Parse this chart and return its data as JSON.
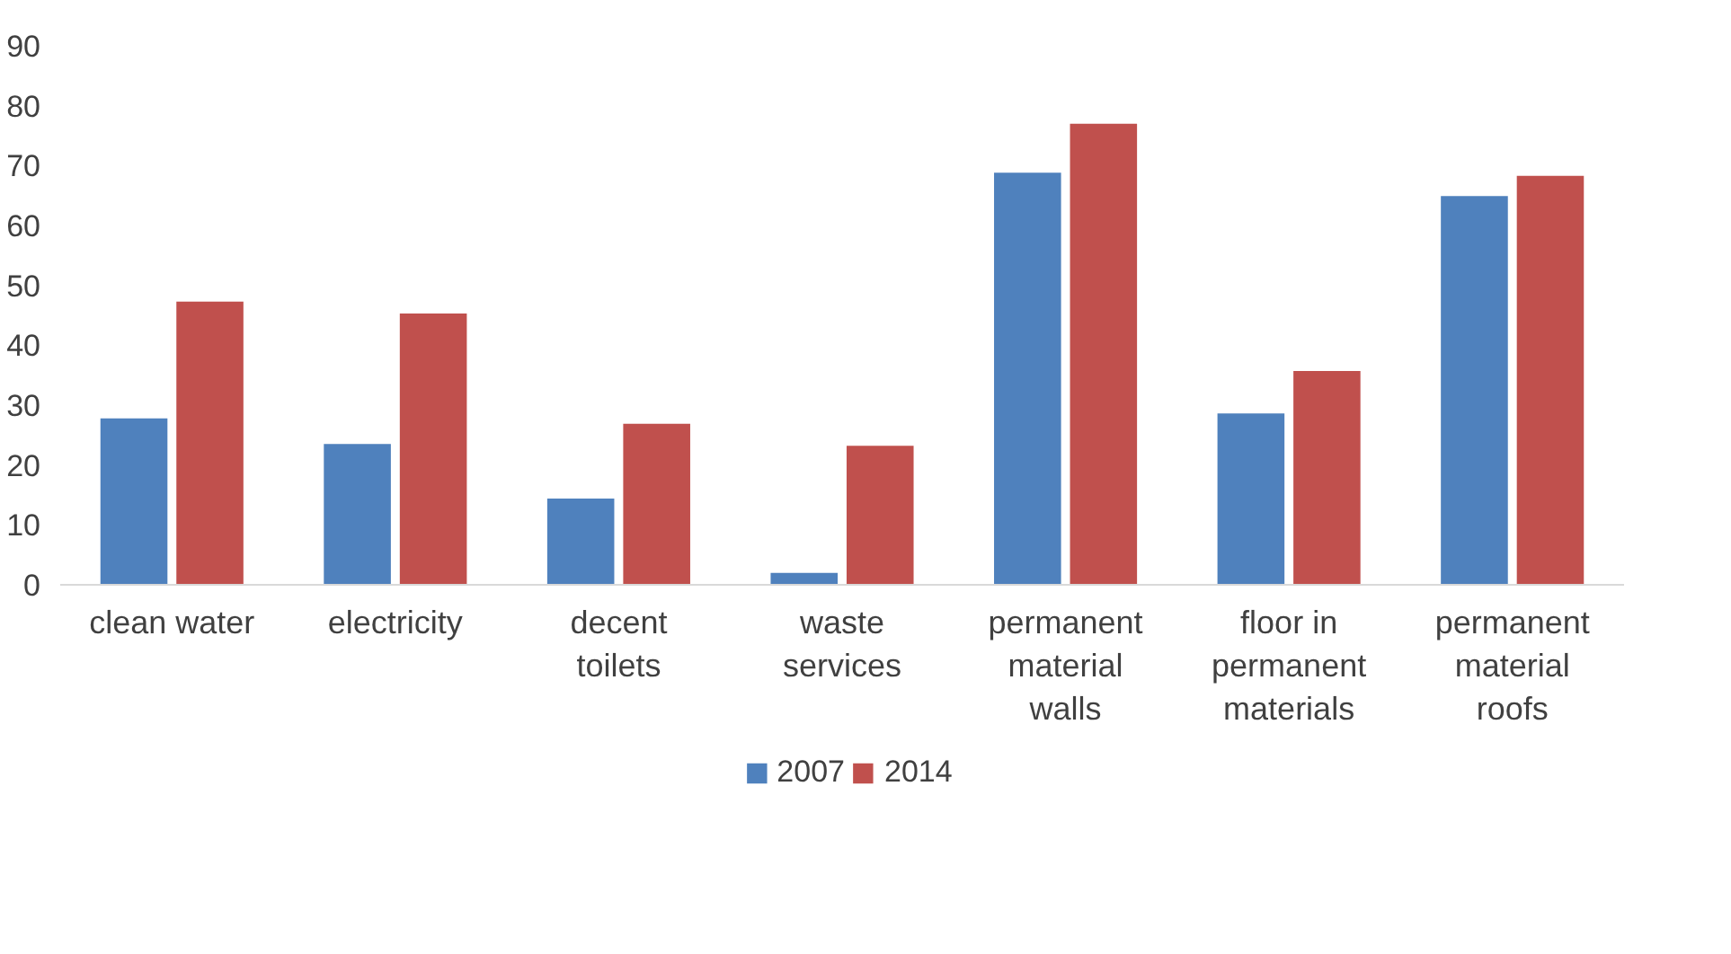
{
  "chart_data": {
    "type": "bar",
    "categories": [
      "clean water",
      "electricity",
      "decent toilets",
      "waste services",
      "permanent material walls",
      "floor in permanent materials",
      "permanent material roofs"
    ],
    "series": [
      {
        "name": "2007",
        "color": "#4f81bd",
        "values": [
          27.8,
          23.5,
          14.4,
          2,
          68.8,
          28.6,
          64.9
        ]
      },
      {
        "name": "2014",
        "color": "#c0504d",
        "values": [
          47.3,
          45.3,
          26.9,
          23.2,
          77,
          35.7,
          68.3
        ]
      }
    ],
    "ylim": [
      0,
      90
    ],
    "yticks": [
      0,
      10,
      20,
      30,
      40,
      50,
      60,
      70,
      80,
      90
    ],
    "grid": false,
    "legend": "bottom"
  }
}
